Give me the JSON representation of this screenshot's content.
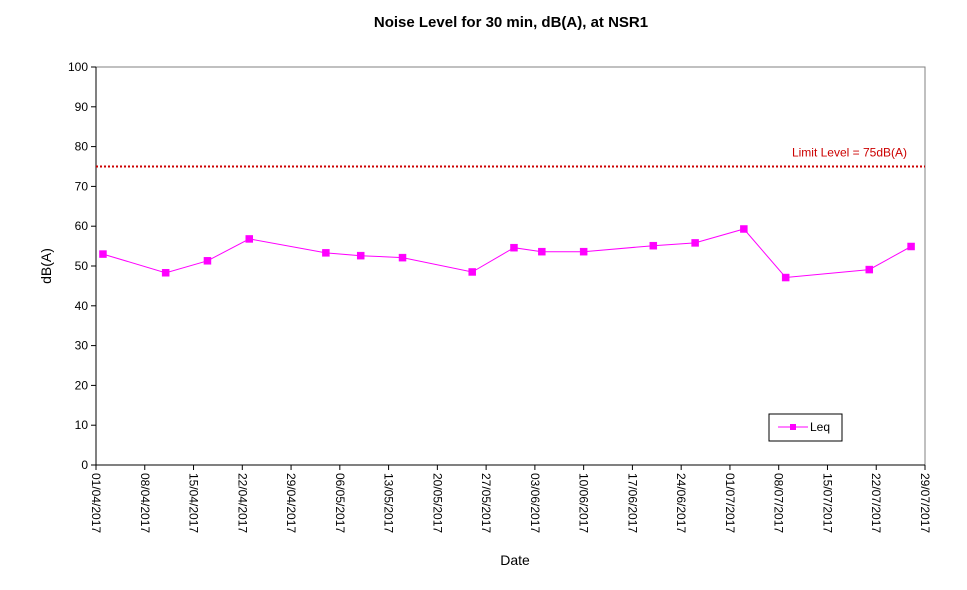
{
  "chart_data": {
    "type": "line",
    "title": "Noise Level for 30 min, dB(A), at NSR1",
    "xlabel": "Date",
    "ylabel": "dB(A)",
    "ylim": [
      0,
      100
    ],
    "yticks": [
      0,
      10,
      20,
      30,
      40,
      50,
      60,
      70,
      80,
      90,
      100
    ],
    "xlim": [
      "2017-04-01",
      "2017-07-29"
    ],
    "xtick_labels": [
      "01/04/2017",
      "08/04/2017",
      "15/04/2017",
      "22/04/2017",
      "29/04/2017",
      "06/05/2017",
      "13/05/2017",
      "20/05/2017",
      "27/05/2017",
      "03/06/2017",
      "10/06/2017",
      "17/06/2017",
      "24/06/2017",
      "01/07/2017",
      "08/07/2017",
      "15/07/2017",
      "22/07/2017",
      "29/07/2017"
    ],
    "grid": false,
    "legend_position": "bottom-right",
    "series": [
      {
        "name": "Leq",
        "color": "#ff00ff",
        "marker": "square",
        "x": [
          "2017-04-02",
          "2017-04-11",
          "2017-04-17",
          "2017-04-23",
          "2017-05-04",
          "2017-05-09",
          "2017-05-15",
          "2017-05-25",
          "2017-05-31",
          "2017-06-04",
          "2017-06-10",
          "2017-06-20",
          "2017-06-26",
          "2017-07-03",
          "2017-07-09",
          "2017-07-21",
          "2017-07-27"
        ],
        "y": [
          53,
          48.3,
          51.3,
          56.8,
          53.3,
          52.6,
          52.1,
          48.5,
          54.6,
          53.6,
          53.6,
          55.1,
          55.8,
          59.3,
          47.1,
          49.1,
          54.9
        ]
      }
    ],
    "limit_line": {
      "label": "Limit Level  = 75dB(A)",
      "value": 75,
      "color": "#cc0000"
    }
  }
}
